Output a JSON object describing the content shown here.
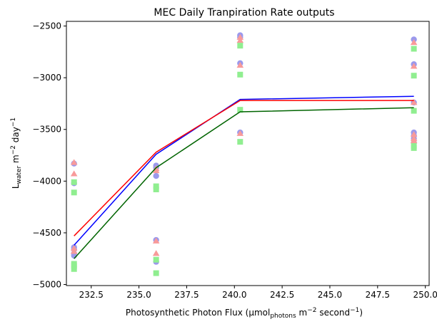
{
  "chart_data": {
    "type": "line",
    "title": "MEC Daily Tranpiration Rate outputs",
    "xlabel": {
      "prefix": "Photosynthetic Photon Flux (µmol",
      "sub": "photons",
      "mid": " m",
      "sup1": "−2",
      "mid2": " second",
      "sup2": "−1",
      "suffix": ")"
    },
    "ylabel": {
      "prefix": "L",
      "sub": "water",
      "mid": " m",
      "sup1": "−2",
      "mid2": " day",
      "sup2": "−1"
    },
    "xlim": [
      231.2,
      250.2
    ],
    "ylim": [
      -5010,
      -2455
    ],
    "xticks": [
      232.5,
      235.0,
      237.5,
      240.0,
      242.5,
      245.0,
      247.5,
      250.0
    ],
    "xtick_labels": [
      "232.5",
      "235.0",
      "237.5",
      "240.0",
      "242.5",
      "245.0",
      "247.5",
      "250.0"
    ],
    "yticks": [
      -5000,
      -4500,
      -4000,
      -3500,
      -3000,
      -2500
    ],
    "ytick_labels": [
      "−5000",
      "−4500",
      "−4000",
      "−3500",
      "−3000",
      "−2500"
    ],
    "grid": false,
    "series": [
      {
        "marker": "circle",
        "color": "#9b99ec",
        "points": [
          [
            231.6,
            -3830
          ],
          [
            231.6,
            -4020
          ],
          [
            231.6,
            -4640
          ],
          [
            231.6,
            -4660
          ],
          [
            231.6,
            -4700
          ],
          [
            231.6,
            -4720
          ],
          [
            235.9,
            -3850
          ],
          [
            235.9,
            -3870
          ],
          [
            235.9,
            -3950
          ],
          [
            235.9,
            -4570
          ],
          [
            235.9,
            -4780
          ],
          [
            240.3,
            -2590
          ],
          [
            240.3,
            -2610
          ],
          [
            240.3,
            -2860
          ],
          [
            240.3,
            -3530
          ],
          [
            249.4,
            -2630
          ],
          [
            249.4,
            -2870
          ],
          [
            249.4,
            -3240
          ],
          [
            249.4,
            -3530
          ],
          [
            249.4,
            -3560
          ],
          [
            249.4,
            -3590
          ],
          [
            249.4,
            -3630
          ]
        ]
      },
      {
        "marker": "triangle",
        "color": "#f89a9a",
        "points": [
          [
            231.6,
            -3820
          ],
          [
            231.6,
            -3930
          ],
          [
            231.6,
            -4650
          ],
          [
            231.6,
            -4680
          ],
          [
            235.9,
            -3880
          ],
          [
            235.9,
            -3900
          ],
          [
            235.9,
            -4580
          ],
          [
            235.9,
            -4700
          ],
          [
            240.3,
            -2610
          ],
          [
            240.3,
            -2640
          ],
          [
            240.3,
            -2880
          ],
          [
            240.3,
            -3540
          ],
          [
            249.4,
            -2660
          ],
          [
            249.4,
            -2890
          ],
          [
            249.4,
            -3240
          ],
          [
            249.4,
            -3550
          ],
          [
            249.4,
            -3590
          ],
          [
            249.4,
            -3610
          ]
        ]
      },
      {
        "marker": "square",
        "color": "#90ee90",
        "points": [
          [
            231.6,
            -4010
          ],
          [
            231.6,
            -4110
          ],
          [
            231.6,
            -4800
          ],
          [
            231.6,
            -4820
          ],
          [
            231.6,
            -4850
          ],
          [
            235.9,
            -4050
          ],
          [
            235.9,
            -4080
          ],
          [
            235.9,
            -4760
          ],
          [
            235.9,
            -4890
          ],
          [
            240.3,
            -2690
          ],
          [
            240.3,
            -2970
          ],
          [
            240.3,
            -3310
          ],
          [
            240.3,
            -3620
          ],
          [
            249.4,
            -2720
          ],
          [
            249.4,
            -2980
          ],
          [
            249.4,
            -3320
          ],
          [
            249.4,
            -3660
          ],
          [
            249.4,
            -3680
          ]
        ]
      },
      {
        "marker": "line",
        "color": "#0000ff",
        "points": [
          [
            231.6,
            -4620
          ],
          [
            235.9,
            -3740
          ],
          [
            240.3,
            -3210
          ],
          [
            249.4,
            -3180
          ]
        ]
      },
      {
        "marker": "line",
        "color": "#ff0000",
        "points": [
          [
            231.6,
            -4530
          ],
          [
            235.9,
            -3720
          ],
          [
            240.3,
            -3220
          ],
          [
            249.4,
            -3220
          ]
        ]
      },
      {
        "marker": "line",
        "color": "#006400",
        "points": [
          [
            231.6,
            -4750
          ],
          [
            235.9,
            -3870
          ],
          [
            240.3,
            -3330
          ],
          [
            249.4,
            -3290
          ]
        ]
      }
    ]
  }
}
